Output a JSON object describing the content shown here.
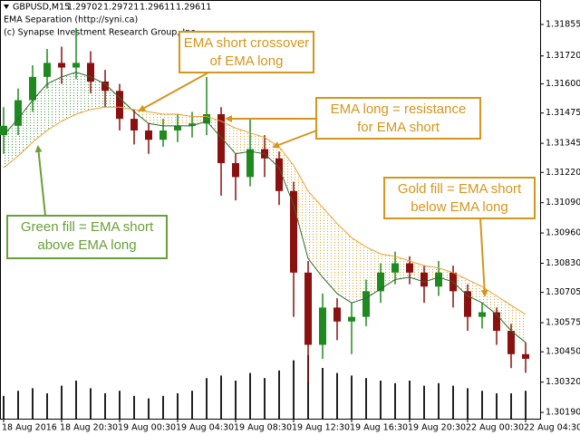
{
  "header": {
    "symbol": "GBPUSD,M15",
    "ohlc": [
      1.29702,
      1.29721,
      1.29611,
      1.29611
    ],
    "indicator": "EMA Separation (http://syni.ca)",
    "copyright": "(c) Synapse Investment Research Group, Inc."
  },
  "chart_data": {
    "type": "candlestick",
    "xlim": [
      -0.25,
      37
    ],
    "xticks": [
      {
        "value": 0,
        "label": "18 Aug 2016"
      },
      {
        "value": 4,
        "label": "18 Aug 20:30"
      },
      {
        "value": 8,
        "label": "19 Aug 00:30"
      },
      {
        "value": 12,
        "label": "19 Aug 04:30"
      },
      {
        "value": 16,
        "label": "19 Aug 08:30"
      },
      {
        "value": 20,
        "label": "19 Aug 12:30"
      },
      {
        "value": 24,
        "label": "19 Aug 16:30"
      },
      {
        "value": 28,
        "label": "19 Aug 20:30"
      },
      {
        "value": 32,
        "label": "22 Aug 00:30"
      },
      {
        "value": 36,
        "label": "22 Aug 04:30"
      }
    ],
    "ylim": [
      1.30163,
      1.3196
    ],
    "yticks": [
      1.31855,
      {
        "value": 1.3172,
        "label": "1.31720"
      },
      {
        "value": 1.316,
        "label": "1.31600"
      },
      1.31475,
      1.31345,
      {
        "value": 1.3122,
        "label": "1.31220"
      },
      {
        "value": 1.3109,
        "label": "1.31090"
      },
      {
        "value": 1.3096,
        "label": "1.30960"
      },
      {
        "value": 1.3083,
        "label": "1.30830"
      },
      1.30705,
      1.30575,
      {
        "value": 1.3045,
        "label": "1.30450"
      },
      {
        "value": 1.3032,
        "label": "1.30320"
      },
      {
        "value": 1.3019,
        "label": "1.30190"
      }
    ],
    "grid": false,
    "up_color": "#1f8a1f",
    "down_color": "#8b1111",
    "open": [
      1.3138,
      1.3142,
      1.3153,
      1.3163,
      1.3169,
      1.3167,
      1.3169,
      1.3161,
      1.3157,
      1.3145,
      1.314,
      1.3136,
      1.314,
      1.3142,
      1.3143,
      1.3147,
      1.3126,
      1.312,
      1.3132,
      1.3128,
      1.3114,
      1.3079,
      1.3048,
      1.3064,
      1.3058,
      1.306,
      1.3071,
      1.3079,
      1.3083,
      1.3079,
      1.3073,
      1.3079,
      1.3071,
      1.306,
      1.3062,
      1.3054,
      1.3044
    ],
    "high": [
      1.315,
      1.3158,
      1.3168,
      1.3175,
      1.3176,
      1.3184,
      1.3174,
      1.3166,
      1.316,
      1.3149,
      1.3143,
      1.3145,
      1.3147,
      1.3148,
      1.3163,
      1.315,
      1.313,
      1.3145,
      1.3138,
      1.3131,
      1.3118,
      1.3084,
      1.307,
      1.3068,
      1.3066,
      1.3076,
      1.3083,
      1.3088,
      1.3086,
      1.3082,
      1.3084,
      1.3082,
      1.3074,
      1.3066,
      1.3064,
      1.3057,
      1.3049
    ],
    "low": [
      1.313,
      1.3138,
      1.3148,
      1.3158,
      1.316,
      1.3162,
      1.3156,
      1.315,
      1.314,
      1.3134,
      1.313,
      1.3133,
      1.3135,
      1.3137,
      1.3138,
      1.3112,
      1.311,
      1.3116,
      1.312,
      1.3108,
      1.306,
      1.3032,
      1.3042,
      1.305,
      1.3044,
      1.3056,
      1.3066,
      1.3074,
      1.3074,
      1.3066,
      1.3069,
      1.3064,
      1.3054,
      1.3055,
      1.3048,
      1.3038,
      1.3036
    ],
    "close": [
      1.3142,
      1.3153,
      1.3163,
      1.3169,
      1.3167,
      1.3169,
      1.3161,
      1.3157,
      1.3145,
      1.314,
      1.3136,
      1.314,
      1.3142,
      1.3143,
      1.3147,
      1.3126,
      1.312,
      1.3132,
      1.3128,
      1.3114,
      1.3079,
      1.3048,
      1.3064,
      1.3058,
      1.306,
      1.3071,
      1.3079,
      1.3083,
      1.3079,
      1.3073,
      1.3079,
      1.3071,
      1.306,
      1.3062,
      1.3054,
      1.3044,
      1.3042
    ],
    "volume": {
      "color": "#222222",
      "values": [
        900,
        1100,
        1200,
        1000,
        1300,
        1500,
        1200,
        1000,
        1100,
        900,
        800,
        900,
        1000,
        1100,
        1600,
        1700,
        1500,
        1800,
        1600,
        1900,
        2300,
        2500,
        2000,
        1800,
        1700,
        1600,
        1500,
        1400,
        1500,
        1300,
        1400,
        1300,
        1200,
        1100,
        1000,
        1000,
        1100
      ]
    },
    "ema_short": {
      "color": "#2d6a2d",
      "values": [
        1.3138,
        1.3145,
        1.3153,
        1.316,
        1.3163,
        1.3165,
        1.3163,
        1.316,
        1.3154,
        1.3148,
        1.3143,
        1.3142,
        1.3142,
        1.3142,
        1.3144,
        1.3137,
        1.313,
        1.3131,
        1.313,
        1.3124,
        1.3108,
        1.3085,
        1.3077,
        1.307,
        1.3066,
        1.3068,
        1.3072,
        1.3076,
        1.3077,
        1.3075,
        1.3077,
        1.3075,
        1.3069,
        1.3066,
        1.3061,
        1.3054,
        1.3049
      ]
    },
    "ema_long": {
      "color": "#e8a030",
      "values": [
        1.3124,
        1.3129,
        1.3135,
        1.314,
        1.3144,
        1.3147,
        1.3149,
        1.315,
        1.315,
        1.3149,
        1.3148,
        1.3147,
        1.3147,
        1.3146,
        1.3146,
        1.3144,
        1.3141,
        1.3139,
        1.3137,
        1.3133,
        1.3125,
        1.3114,
        1.3107,
        1.31,
        1.3094,
        1.309,
        1.3087,
        1.3086,
        1.3084,
        1.3082,
        1.3081,
        1.3079,
        1.3076,
        1.3073,
        1.3069,
        1.3065,
        1.3061
      ]
    },
    "fill_colors": {
      "above": "#3f9a3f",
      "below": "#e0a020"
    },
    "annotations": [
      {
        "color": "#d4961c",
        "lines": [
          "EMA short crossover",
          "of EMA long"
        ]
      },
      {
        "color": "#d4961c",
        "lines": [
          "EMA long = resistance",
          "for EMA short"
        ]
      },
      {
        "color": "#d4961c",
        "lines": [
          "Gold fill = EMA short",
          "below EMA long"
        ]
      },
      {
        "color": "#6a9f3a",
        "lines": [
          "Green fill = EMA short",
          "above EMA long"
        ]
      }
    ]
  }
}
